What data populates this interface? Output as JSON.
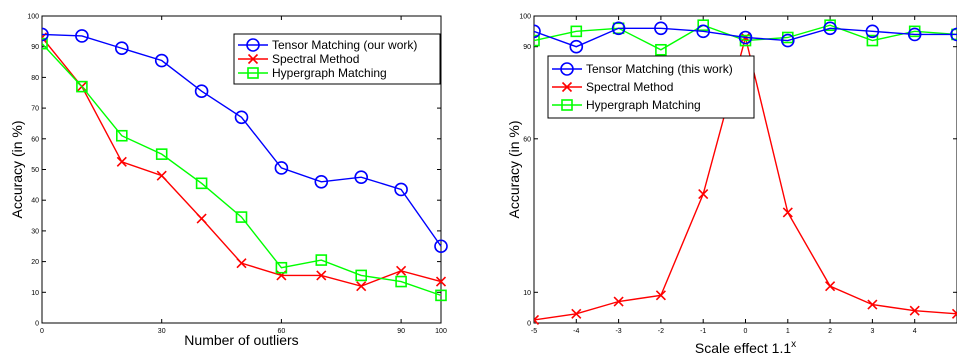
{
  "chart_data": [
    {
      "type": "line",
      "xlabel": "Number of outliers",
      "ylabel": "Accuracy (in %)",
      "xlim": [
        0,
        100
      ],
      "ylim": [
        0,
        100
      ],
      "xticks": [
        0,
        30,
        60,
        90,
        100
      ],
      "yticks": [
        0,
        10,
        20,
        30,
        40,
        50,
        60,
        70,
        80,
        90,
        100
      ],
      "x": [
        0,
        10,
        20,
        30,
        40,
        50,
        60,
        70,
        80,
        90,
        100
      ],
      "legend_position": "top-right",
      "series": [
        {
          "name": "Tensor Matching (our work)",
          "color": "#0000ff",
          "marker": "circle",
          "values": [
            94,
            93.5,
            89.5,
            85.5,
            75.5,
            67,
            50.5,
            46,
            47.5,
            43.5,
            25
          ]
        },
        {
          "name": "Spectral Method",
          "color": "#ff0000",
          "marker": "x",
          "values": [
            93,
            77,
            52.5,
            48,
            34,
            19.5,
            15.5,
            15.5,
            12,
            17,
            13.5
          ]
        },
        {
          "name": "Hypergraph Matching",
          "color": "#00ff00",
          "marker": "square",
          "values": [
            91,
            77,
            61,
            55,
            45.5,
            34.5,
            18,
            20.5,
            15.5,
            13.5,
            9
          ]
        }
      ]
    },
    {
      "type": "line",
      "xlabel": "Scale effect 1.1",
      "xlabel_superscript": "x",
      "ylabel": "Accuracy (in %)",
      "xlim": [
        -5,
        5
      ],
      "ylim": [
        0,
        100
      ],
      "xticks": [
        -5,
        -4,
        -3,
        -2,
        -1,
        0,
        1,
        2,
        3,
        4
      ],
      "yticks": [
        0,
        10,
        60,
        90,
        100
      ],
      "x": [
        -5,
        -4,
        -3,
        -2,
        -1,
        0,
        1,
        2,
        3,
        4,
        5
      ],
      "legend_position": "upper-left",
      "series": [
        {
          "name": "Tensor Matching (this work)",
          "color": "#0000ff",
          "marker": "circle",
          "values": [
            95,
            90,
            96,
            96,
            95,
            93,
            92,
            96,
            95,
            94,
            94
          ]
        },
        {
          "name": "Spectral Method",
          "color": "#ff0000",
          "marker": "x",
          "values": [
            1,
            3,
            7,
            9,
            42,
            93,
            36,
            12,
            6,
            4,
            3
          ]
        },
        {
          "name": "Hypergraph Matching",
          "color": "#00ff00",
          "marker": "square",
          "values": [
            92,
            95,
            96,
            89,
            97,
            92,
            93,
            97,
            92,
            95,
            94
          ]
        }
      ]
    }
  ]
}
